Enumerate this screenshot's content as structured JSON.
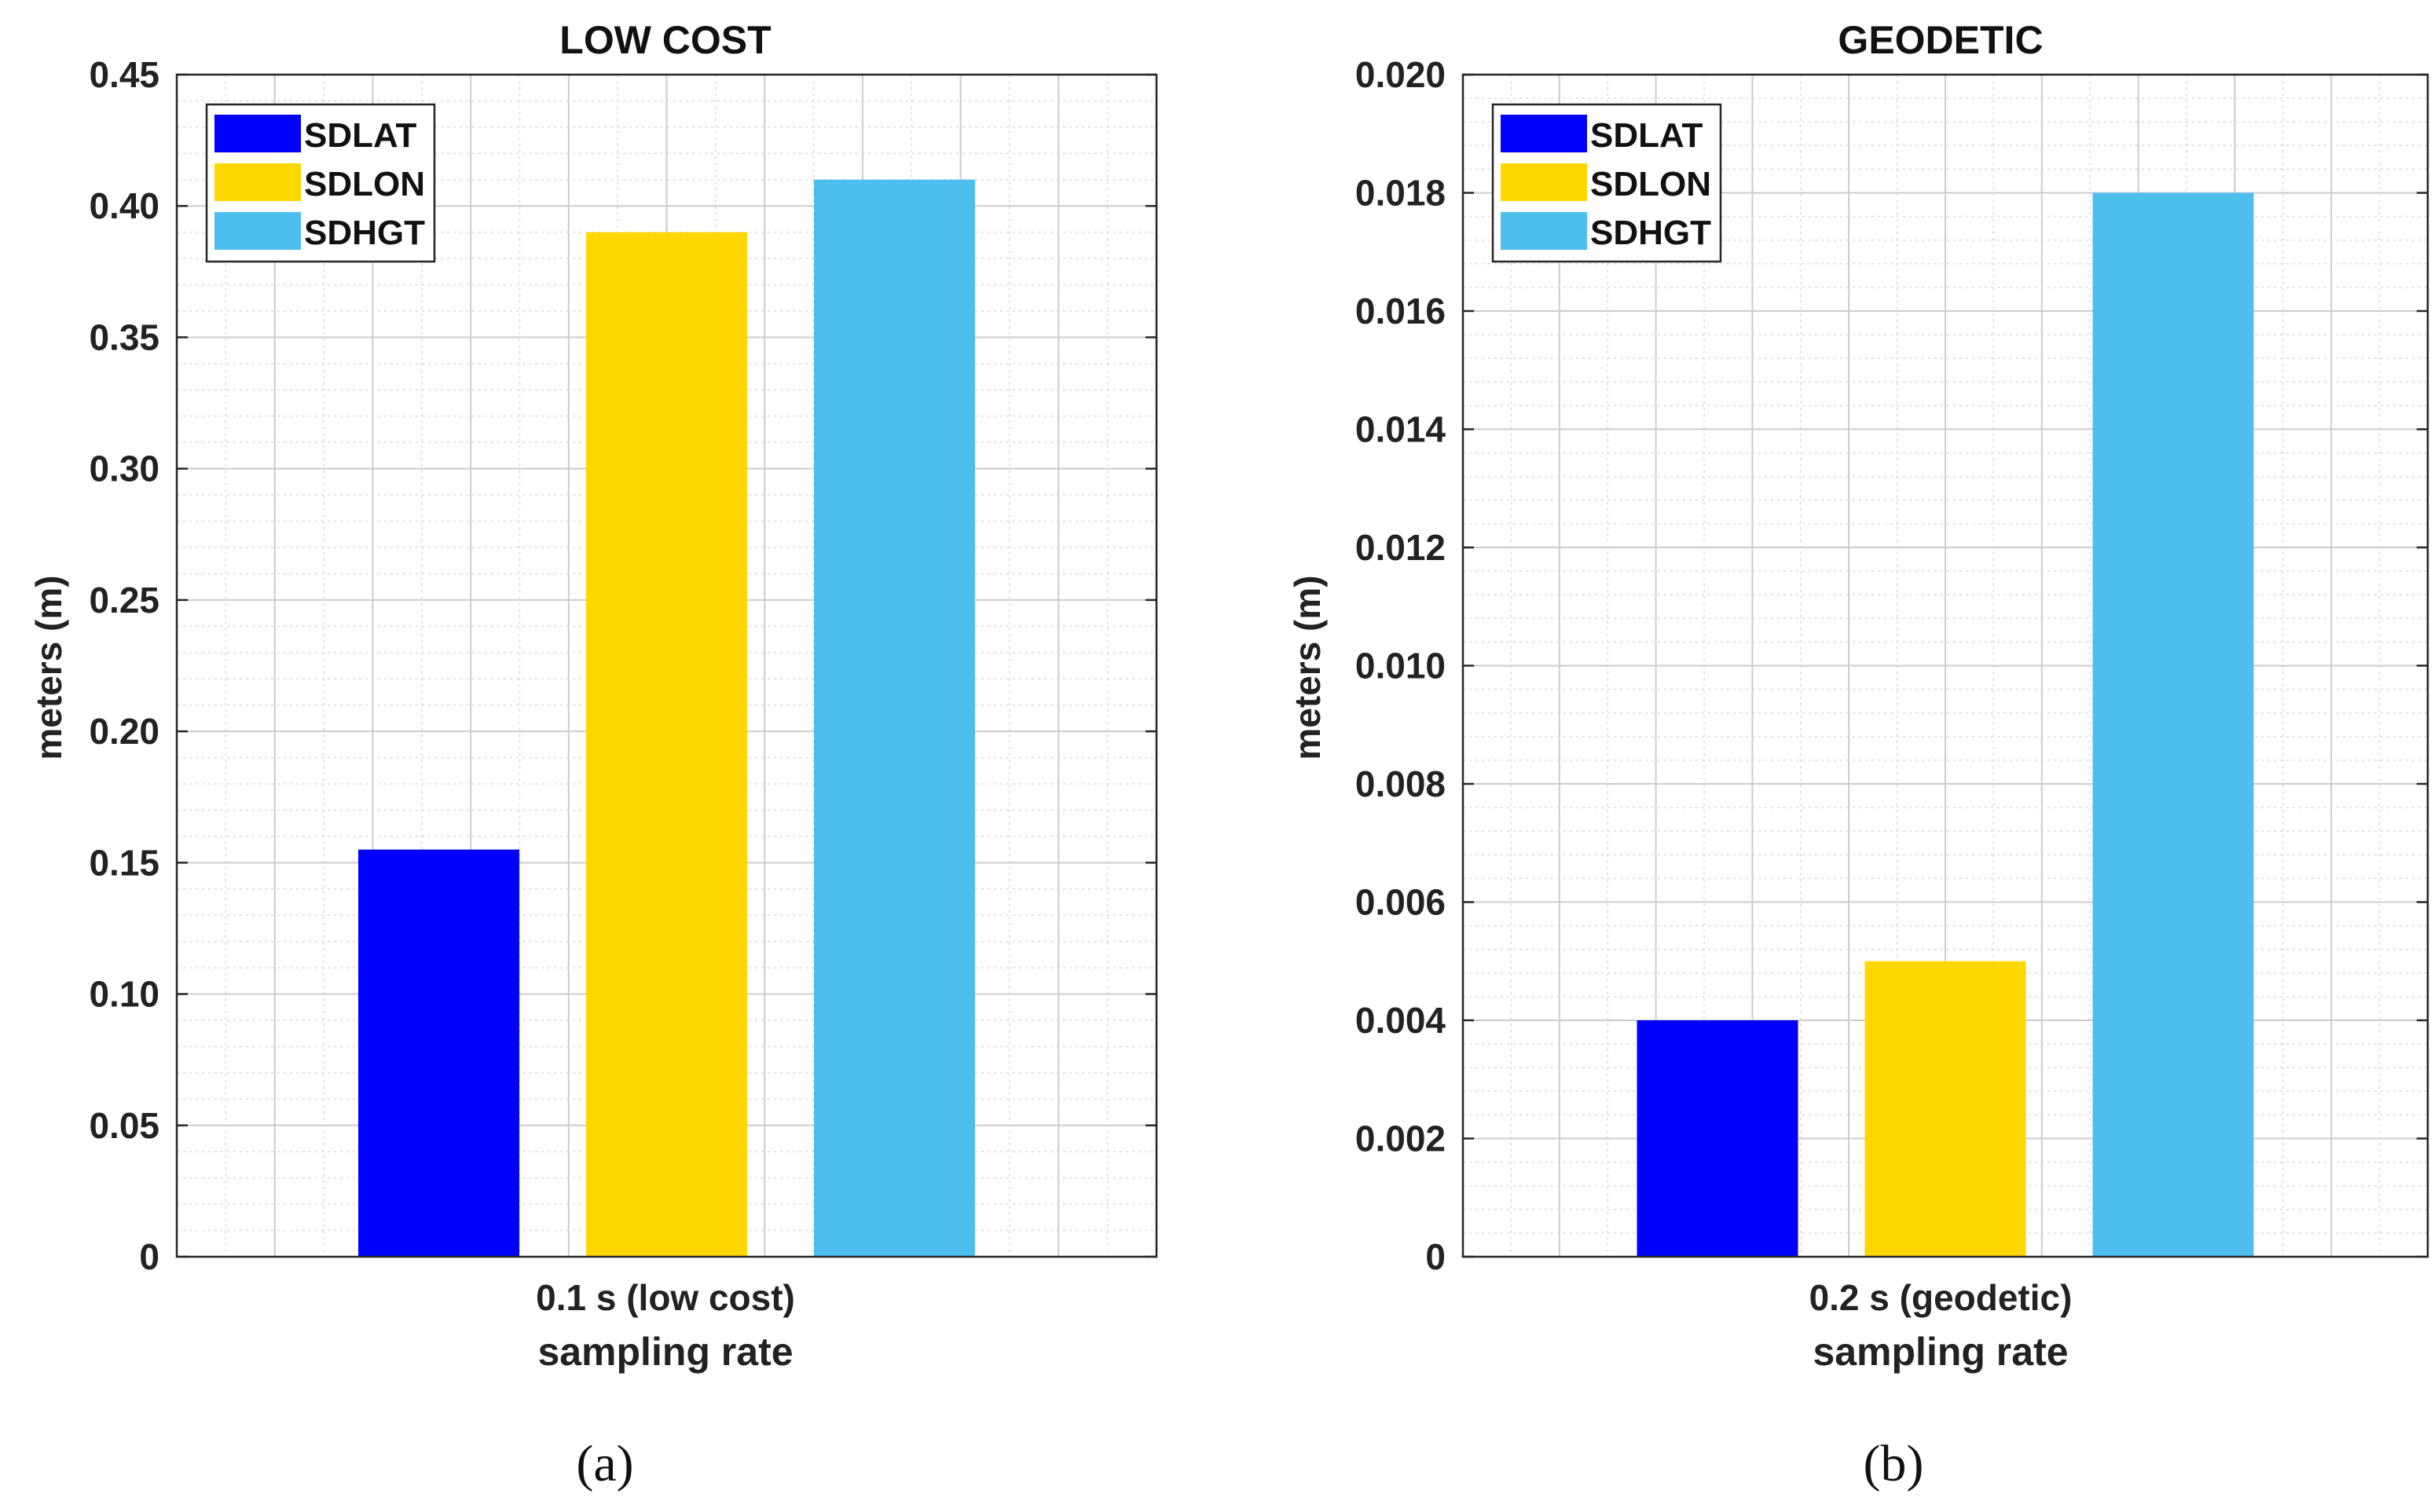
{
  "chart_data": [
    {
      "type": "bar",
      "title": "LOW COST",
      "xlabel": "sampling rate",
      "ylabel": "meters (m)",
      "categories": [
        "0.1 s (low cost)"
      ],
      "series": [
        {
          "name": "SDLAT",
          "values": [
            0.155
          ],
          "color": "#0000FF"
        },
        {
          "name": "SDLON",
          "values": [
            0.39
          ],
          "color": "#FFD700"
        },
        {
          "name": "SDHGT",
          "values": [
            0.41
          ],
          "color": "#4DBEEE"
        }
      ],
      "ylim": [
        0,
        0.45
      ],
      "yticks": [
        "0",
        "0.05",
        "0.10",
        "0.15",
        "0.20",
        "0.25",
        "0.30",
        "0.35",
        "0.40",
        "0.45"
      ],
      "grid": true,
      "legend": "top-left",
      "caption": "(a)"
    },
    {
      "type": "bar",
      "title": "GEODETIC",
      "xlabel": "sampling rate",
      "ylabel": "meters (m)",
      "categories": [
        "0.2 s (geodetic)"
      ],
      "series": [
        {
          "name": "SDLAT",
          "values": [
            0.004
          ],
          "color": "#0000FF"
        },
        {
          "name": "SDLON",
          "values": [
            0.005
          ],
          "color": "#FFD700"
        },
        {
          "name": "SDHGT",
          "values": [
            0.018
          ],
          "color": "#4DBEEE"
        }
      ],
      "ylim": [
        0,
        0.02
      ],
      "yticks": [
        "0",
        "0.002",
        "0.004",
        "0.006",
        "0.008",
        "0.010",
        "0.012",
        "0.014",
        "0.016",
        "0.018",
        "0.020"
      ],
      "grid": true,
      "legend": "top-left",
      "caption": "(b)"
    }
  ]
}
